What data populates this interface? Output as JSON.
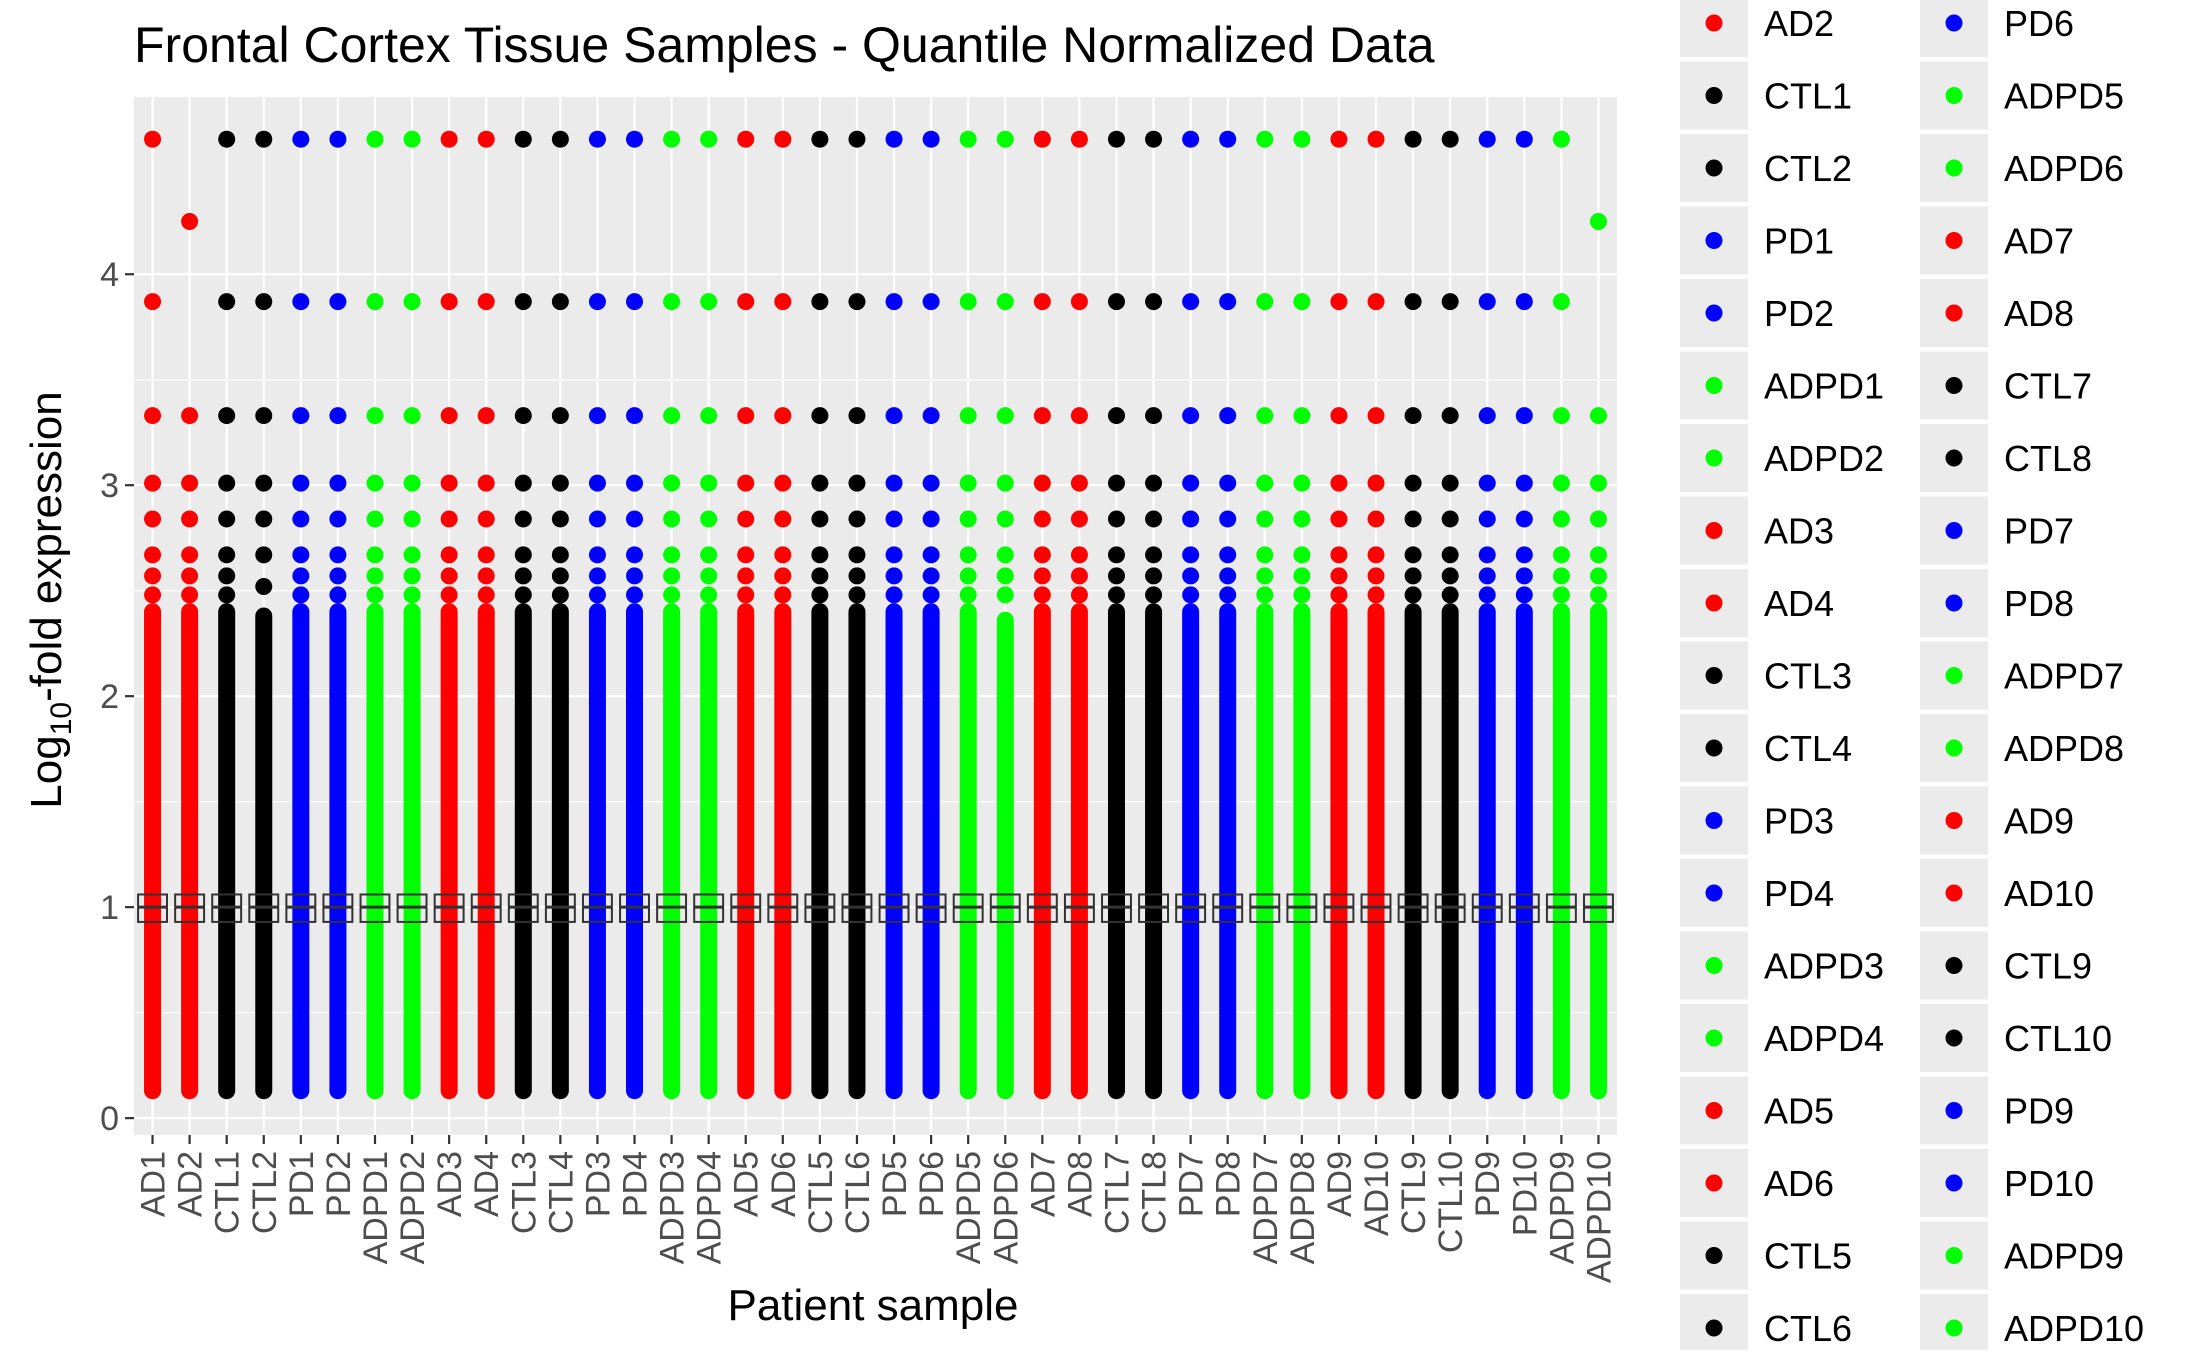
{
  "chart_data": {
    "type": "scatter",
    "title": "Frontal Cortex Tissue Samples - Quantile Normalized Data",
    "xlabel": "Patient sample",
    "ylabel_base": "Log",
    "ylabel_sub": "10",
    "ylabel_rest": "-fold expression",
    "ylim": [
      -0.08,
      4.84
    ],
    "yticks": [
      0,
      1,
      2,
      3,
      4
    ],
    "grid": true,
    "legend_position": "right",
    "background": "#ebebeb",
    "group_colors": {
      "AD": "#ff0000",
      "CTL": "#000000",
      "PD": "#0000ff",
      "ADPD": "#00ff00"
    },
    "categories": [
      "AD1",
      "AD2",
      "CTL1",
      "CTL2",
      "PD1",
      "PD2",
      "ADPD1",
      "ADPD2",
      "AD3",
      "AD4",
      "CTL3",
      "CTL4",
      "PD3",
      "PD4",
      "ADPD3",
      "ADPD4",
      "AD5",
      "AD6",
      "CTL5",
      "CTL6",
      "PD5",
      "PD6",
      "ADPD5",
      "ADPD6",
      "AD7",
      "AD8",
      "CTL7",
      "CTL8",
      "PD7",
      "PD8",
      "ADPD7",
      "ADPD8",
      "AD9",
      "AD10",
      "CTL9",
      "CTL10",
      "PD9",
      "PD10",
      "ADPD9",
      "ADPD10"
    ],
    "groups": [
      "AD",
      "AD",
      "CTL",
      "CTL",
      "PD",
      "PD",
      "ADPD",
      "ADPD",
      "AD",
      "AD",
      "CTL",
      "CTL",
      "PD",
      "PD",
      "ADPD",
      "ADPD",
      "AD",
      "AD",
      "CTL",
      "CTL",
      "PD",
      "PD",
      "ADPD",
      "ADPD",
      "AD",
      "AD",
      "CTL",
      "CTL",
      "PD",
      "PD",
      "ADPD",
      "ADPD",
      "AD",
      "AD",
      "CTL",
      "CTL",
      "PD",
      "PD",
      "ADPD",
      "ADPD"
    ],
    "dense_range": [
      [
        0.13,
        2.4
      ],
      [
        0.13,
        2.4
      ],
      [
        0.13,
        2.4
      ],
      [
        0.13,
        2.38
      ],
      [
        0.13,
        2.4
      ],
      [
        0.13,
        2.4
      ],
      [
        0.13,
        2.4
      ],
      [
        0.13,
        2.4
      ],
      [
        0.13,
        2.4
      ],
      [
        0.13,
        2.4
      ],
      [
        0.13,
        2.4
      ],
      [
        0.13,
        2.4
      ],
      [
        0.13,
        2.4
      ],
      [
        0.13,
        2.4
      ],
      [
        0.13,
        2.4
      ],
      [
        0.13,
        2.4
      ],
      [
        0.13,
        2.4
      ],
      [
        0.13,
        2.4
      ],
      [
        0.13,
        2.4
      ],
      [
        0.13,
        2.4
      ],
      [
        0.13,
        2.4
      ],
      [
        0.13,
        2.4
      ],
      [
        0.13,
        2.4
      ],
      [
        0.13,
        2.36
      ],
      [
        0.13,
        2.4
      ],
      [
        0.13,
        2.4
      ],
      [
        0.13,
        2.4
      ],
      [
        0.13,
        2.4
      ],
      [
        0.13,
        2.4
      ],
      [
        0.13,
        2.4
      ],
      [
        0.13,
        2.4
      ],
      [
        0.13,
        2.4
      ],
      [
        0.13,
        2.4
      ],
      [
        0.13,
        2.4
      ],
      [
        0.13,
        2.4
      ],
      [
        0.13,
        2.4
      ],
      [
        0.13,
        2.4
      ],
      [
        0.13,
        2.4
      ],
      [
        0.13,
        2.4
      ],
      [
        0.13,
        2.4
      ]
    ],
    "outliers": [
      [
        2.48,
        2.57,
        2.67,
        2.84,
        3.01,
        3.33,
        3.87,
        4.64
      ],
      [
        2.48,
        2.57,
        2.67,
        2.84,
        3.01,
        3.33,
        4.25
      ],
      [
        2.48,
        2.57,
        2.67,
        2.84,
        3.01,
        3.33,
        3.87,
        4.64
      ],
      [
        2.52,
        2.67,
        2.84,
        3.01,
        3.33,
        3.87,
        4.64
      ],
      [
        2.48,
        2.57,
        2.67,
        2.84,
        3.01,
        3.33,
        3.87,
        4.64
      ],
      [
        2.48,
        2.57,
        2.67,
        2.84,
        3.01,
        3.33,
        3.87,
        4.64
      ],
      [
        2.48,
        2.57,
        2.67,
        2.84,
        3.01,
        3.33,
        3.87,
        4.64
      ],
      [
        2.48,
        2.57,
        2.67,
        2.84,
        3.01,
        3.33,
        3.87,
        4.64
      ],
      [
        2.48,
        2.57,
        2.67,
        2.84,
        3.01,
        3.33,
        3.87,
        4.64
      ],
      [
        2.48,
        2.57,
        2.67,
        2.84,
        3.01,
        3.33,
        3.87,
        4.64
      ],
      [
        2.48,
        2.57,
        2.67,
        2.84,
        3.01,
        3.33,
        3.87,
        4.64
      ],
      [
        2.48,
        2.57,
        2.67,
        2.84,
        3.01,
        3.33,
        3.87,
        4.64
      ],
      [
        2.48,
        2.57,
        2.67,
        2.84,
        3.01,
        3.33,
        3.87,
        4.64
      ],
      [
        2.48,
        2.57,
        2.67,
        2.84,
        3.01,
        3.33,
        3.87,
        4.64
      ],
      [
        2.48,
        2.57,
        2.67,
        2.84,
        3.01,
        3.33,
        3.87,
        4.64
      ],
      [
        2.48,
        2.57,
        2.67,
        2.84,
        3.01,
        3.33,
        3.87,
        4.64
      ],
      [
        2.48,
        2.57,
        2.67,
        2.84,
        3.01,
        3.33,
        3.87,
        4.64
      ],
      [
        2.48,
        2.57,
        2.67,
        2.84,
        3.01,
        3.33,
        3.87,
        4.64
      ],
      [
        2.48,
        2.57,
        2.67,
        2.84,
        3.01,
        3.33,
        3.87,
        4.64
      ],
      [
        2.48,
        2.57,
        2.67,
        2.84,
        3.01,
        3.33,
        3.87,
        4.64
      ],
      [
        2.48,
        2.57,
        2.67,
        2.84,
        3.01,
        3.33,
        3.87,
        4.64
      ],
      [
        2.48,
        2.57,
        2.67,
        2.84,
        3.01,
        3.33,
        3.87,
        4.64
      ],
      [
        2.48,
        2.57,
        2.67,
        2.84,
        3.01,
        3.33,
        3.87,
        4.64
      ],
      [
        2.48,
        2.57,
        2.67,
        2.84,
        3.01,
        3.33,
        3.87,
        4.64
      ],
      [
        2.48,
        2.57,
        2.67,
        2.84,
        3.01,
        3.33,
        3.87,
        4.64
      ],
      [
        2.48,
        2.57,
        2.67,
        2.84,
        3.01,
        3.33,
        3.87,
        4.64
      ],
      [
        2.48,
        2.57,
        2.67,
        2.84,
        3.01,
        3.33,
        3.87,
        4.64
      ],
      [
        2.48,
        2.57,
        2.67,
        2.84,
        3.01,
        3.33,
        3.87,
        4.64
      ],
      [
        2.48,
        2.57,
        2.67,
        2.84,
        3.01,
        3.33,
        3.87,
        4.64
      ],
      [
        2.48,
        2.57,
        2.67,
        2.84,
        3.01,
        3.33,
        3.87,
        4.64
      ],
      [
        2.48,
        2.57,
        2.67,
        2.84,
        3.01,
        3.33,
        3.87,
        4.64
      ],
      [
        2.48,
        2.57,
        2.67,
        2.84,
        3.01,
        3.33,
        3.87,
        4.64
      ],
      [
        2.48,
        2.57,
        2.67,
        2.84,
        3.01,
        3.33,
        3.87,
        4.64
      ],
      [
        2.48,
        2.57,
        2.67,
        2.84,
        3.01,
        3.33,
        3.87,
        4.64
      ],
      [
        2.48,
        2.57,
        2.67,
        2.84,
        3.01,
        3.33,
        3.87,
        4.64
      ],
      [
        2.48,
        2.57,
        2.67,
        2.84,
        3.01,
        3.33,
        3.87,
        4.64
      ],
      [
        2.48,
        2.57,
        2.67,
        2.84,
        3.01,
        3.33,
        3.87,
        4.64
      ],
      [
        2.48,
        2.57,
        2.67,
        2.84,
        3.01,
        3.33,
        3.87,
        4.64
      ],
      [
        2.48,
        2.57,
        2.67,
        2.84,
        3.01,
        3.33,
        3.87,
        4.64
      ],
      [
        2.48,
        2.57,
        2.67,
        2.84,
        3.01,
        3.33,
        4.25
      ]
    ],
    "boxplot": {
      "q1": 0.93,
      "median": 1.0,
      "q3": 1.06
    },
    "legend_columns": [
      [
        "AD2",
        "CTL1",
        "CTL2",
        "PD1",
        "PD2",
        "ADPD1",
        "ADPD2",
        "AD3",
        "AD4",
        "CTL3",
        "CTL4",
        "PD3",
        "PD4",
        "ADPD3",
        "ADPD4",
        "AD5",
        "AD6",
        "CTL5",
        "CTL6"
      ],
      [
        "PD6",
        "ADPD5",
        "ADPD6",
        "AD7",
        "AD8",
        "CTL7",
        "CTL8",
        "PD7",
        "PD8",
        "ADPD7",
        "ADPD8",
        "AD9",
        "AD10",
        "CTL9",
        "CTL10",
        "PD9",
        "PD10",
        "ADPD9",
        "ADPD10"
      ]
    ]
  }
}
